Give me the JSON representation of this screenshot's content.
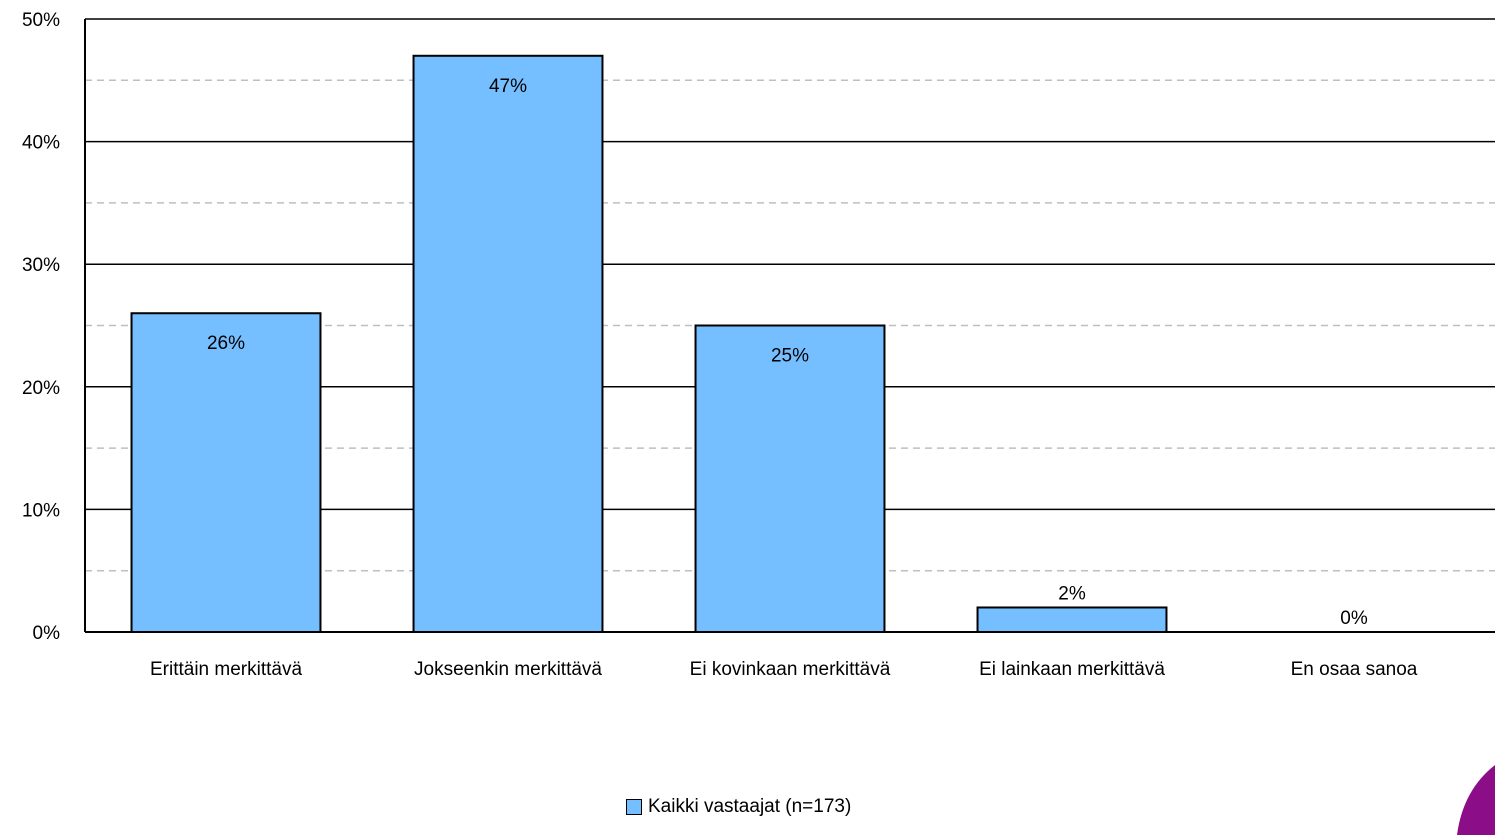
{
  "chart_data": {
    "type": "bar",
    "title": "",
    "xlabel": "",
    "ylabel": "",
    "categories": [
      "Erittäin merkittävä",
      "Jokseenkin merkittävä",
      "Ei kovinkaan merkittävä",
      "Ei lainkaan merkittävä",
      "En osaa sanoa"
    ],
    "series": [
      {
        "name": "Kaikki vastaajat (n=173)",
        "values": [
          26,
          47,
          25,
          2,
          0
        ]
      }
    ],
    "data_labels": [
      "26%",
      "47%",
      "25%",
      "2%",
      "0%"
    ],
    "ylim": [
      0,
      50
    ],
    "y_ticks": [
      0,
      10,
      20,
      30,
      40,
      50
    ],
    "y_tick_labels": [
      "0%",
      "10%",
      "20%",
      "30%",
      "40%",
      "50%"
    ],
    "grid": {
      "major": true,
      "minor_dashed": true
    },
    "legend_position": "bottom",
    "colors": {
      "bar": "#75BEFF",
      "bar_border": "#000000",
      "minor_grid": "#BFBFBF",
      "accent": "#8B0D87"
    }
  }
}
